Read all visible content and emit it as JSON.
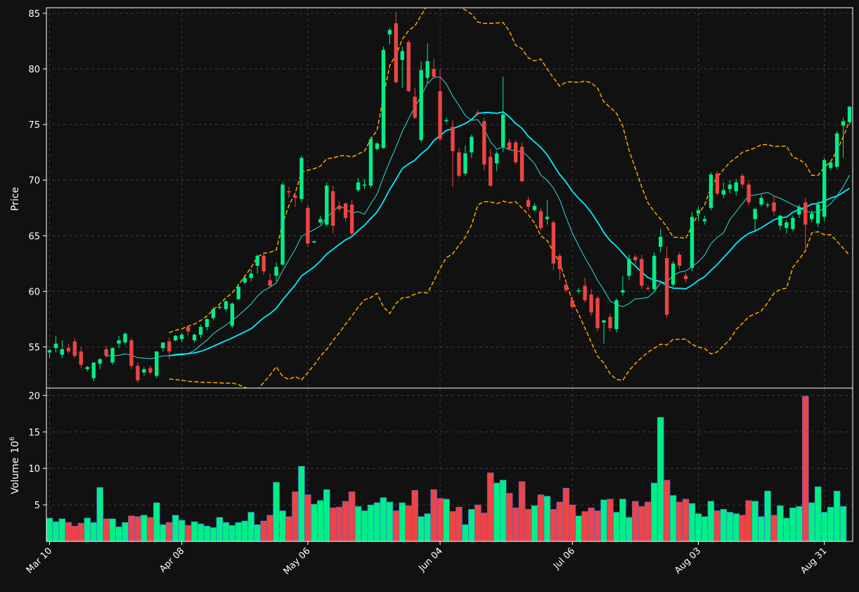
{
  "colors": {
    "background": "#111111",
    "up": "#00ee88",
    "down": "#ee4444",
    "volume_edge": "#4466dd",
    "fast_ma": "#33dddd",
    "slow_ma": "#00eeff",
    "bands": "#ffa500",
    "grid": "#3a3a3a",
    "frame": "#ffffff"
  },
  "chart_data": [
    {
      "type": "candlestick",
      "name": "price-panel",
      "ylabel": "Price",
      "ylim": [
        51.3,
        85.5
      ],
      "yticks": [
        55,
        60,
        65,
        70,
        75,
        80,
        85
      ],
      "grid": true,
      "start_date": "Mar 10",
      "x_tick_labels": [
        {
          "label": "Mar 10",
          "index": 0
        },
        {
          "label": "Apr 08",
          "index": 21
        },
        {
          "label": "May 06",
          "index": 41
        },
        {
          "label": "Jun 04",
          "index": 62
        },
        {
          "label": "Jul 06",
          "index": 83
        },
        {
          "label": "Aug 03",
          "index": 103
        },
        {
          "label": "Aug 31",
          "index": 123
        }
      ],
      "candles": [
        [
          54.5,
          54.8,
          54.0,
          54.7
        ],
        [
          54.9,
          56.0,
          54.5,
          55.3
        ],
        [
          54.3,
          55.6,
          54.0,
          54.8
        ],
        [
          54.9,
          55.3,
          54.4,
          54.6
        ],
        [
          55.5,
          55.8,
          54.0,
          54.2
        ],
        [
          54.6,
          55.0,
          53.1,
          53.4
        ],
        [
          53.0,
          53.3,
          52.8,
          53.2
        ],
        [
          52.2,
          53.6,
          51.9,
          53.6
        ],
        [
          53.5,
          54.0,
          53.0,
          53.9
        ],
        [
          54.8,
          55.1,
          54.0,
          54.2
        ],
        [
          53.6,
          55.0,
          53.4,
          54.9
        ],
        [
          55.3,
          56.0,
          54.9,
          55.6
        ],
        [
          55.4,
          56.3,
          55.2,
          56.2
        ],
        [
          55.6,
          55.8,
          53.0,
          53.3
        ],
        [
          53.3,
          53.6,
          51.8,
          52.0
        ],
        [
          52.7,
          53.2,
          52.4,
          53.0
        ],
        [
          53.1,
          53.3,
          52.5,
          52.7
        ],
        [
          52.4,
          54.6,
          52.2,
          54.6
        ],
        [
          54.9,
          55.4,
          54.6,
          55.4
        ],
        [
          55.5,
          55.8,
          53.9,
          54.6
        ],
        [
          55.6,
          56.1,
          55.5,
          56.0
        ],
        [
          55.7,
          56.3,
          55.4,
          56.1
        ],
        [
          56.8,
          56.9,
          56.0,
          56.4
        ],
        [
          55.6,
          56.2,
          55.4,
          56.1
        ],
        [
          56.1,
          57.0,
          55.8,
          56.8
        ],
        [
          56.8,
          57.6,
          56.5,
          57.5
        ],
        [
          57.6,
          58.6,
          57.4,
          58.4
        ],
        [
          58.5,
          58.8,
          58.4,
          58.6
        ],
        [
          58.4,
          59.2,
          58.2,
          59.1
        ],
        [
          56.9,
          59.0,
          56.7,
          58.9
        ],
        [
          59.3,
          60.7,
          59.2,
          60.4
        ],
        [
          60.8,
          61.3,
          60.6,
          61.2
        ],
        [
          61.2,
          62.0,
          60.9,
          61.6
        ],
        [
          62.3,
          63.3,
          61.6,
          63.2
        ],
        [
          63.2,
          63.4,
          61.5,
          61.8
        ],
        [
          61.0,
          61.6,
          60.3,
          60.5
        ],
        [
          61.4,
          62.6,
          60.9,
          62.2
        ],
        [
          62.4,
          69.8,
          62.3,
          69.6
        ],
        [
          69.0,
          69.4,
          68.4,
          68.9
        ],
        [
          68.6,
          68.9,
          67.6,
          68.4
        ],
        [
          68.3,
          72.2,
          68.0,
          72.0
        ],
        [
          67.5,
          67.8,
          64.0,
          64.3
        ],
        [
          64.4,
          64.6,
          64.3,
          64.5
        ],
        [
          66.2,
          66.8,
          66.0,
          66.5
        ],
        [
          66.0,
          69.8,
          65.8,
          69.5
        ],
        [
          69.0,
          69.5,
          65.2,
          65.9
        ],
        [
          67.7,
          68.1,
          67.2,
          67.4
        ],
        [
          67.9,
          68.0,
          66.3,
          66.6
        ],
        [
          67.8,
          68.2,
          64.9,
          65.2
        ],
        [
          69.1,
          70.2,
          68.9,
          69.8
        ],
        [
          69.5,
          70.1,
          69.2,
          69.6
        ],
        [
          69.5,
          73.9,
          69.3,
          73.7
        ],
        [
          72.8,
          73.4,
          72.7,
          73.3
        ],
        [
          72.9,
          82.0,
          72.8,
          81.7
        ],
        [
          83.1,
          83.7,
          82.2,
          83.5
        ],
        [
          84.1,
          85.1,
          78.7,
          78.8
        ],
        [
          80.8,
          82.0,
          78.3,
          81.6
        ],
        [
          82.4,
          82.6,
          77.9,
          78.0
        ],
        [
          77.5,
          78.3,
          75.5,
          75.6
        ],
        [
          73.6,
          80.7,
          73.4,
          79.9
        ],
        [
          79.2,
          82.3,
          78.7,
          80.7
        ],
        [
          80.0,
          80.9,
          79.1,
          79.3
        ],
        [
          78.0,
          80.0,
          73.5,
          73.7
        ],
        [
          75.3,
          75.6,
          75.1,
          75.4
        ],
        [
          74.8,
          75.4,
          69.4,
          72.6
        ],
        [
          72.5,
          72.9,
          70.2,
          70.4
        ],
        [
          70.6,
          73.1,
          70.4,
          72.4
        ],
        [
          72.5,
          74.1,
          72.0,
          73.9
        ],
        [
          76.1,
          76.3,
          75.8,
          76.0
        ],
        [
          75.3,
          75.6,
          70.9,
          71.4
        ],
        [
          72.1,
          72.8,
          69.4,
          69.5
        ],
        [
          71.5,
          72.6,
          70.8,
          72.4
        ],
        [
          73.0,
          79.3,
          72.5,
          75.9
        ],
        [
          73.4,
          73.7,
          72.7,
          72.8
        ],
        [
          73.4,
          73.6,
          71.4,
          71.6
        ],
        [
          73.0,
          73.4,
          69.8,
          69.9
        ],
        [
          68.2,
          68.5,
          67.3,
          67.6
        ],
        [
          67.3,
          67.9,
          67.2,
          67.7
        ],
        [
          67.2,
          67.5,
          65.5,
          65.7
        ],
        [
          66.5,
          68.2,
          66.0,
          66.7
        ],
        [
          66.2,
          66.4,
          61.9,
          62.5
        ],
        [
          63.2,
          63.4,
          61.0,
          62.0
        ],
        [
          60.6,
          61.0,
          59.9,
          60.1
        ],
        [
          59.2,
          59.5,
          58.4,
          58.6
        ],
        [
          60.0,
          60.3,
          59.8,
          60.1
        ],
        [
          60.5,
          61.2,
          59.0,
          59.2
        ],
        [
          59.7,
          60.2,
          57.8,
          58.1
        ],
        [
          59.4,
          59.6,
          56.4,
          56.7
        ],
        [
          57.2,
          57.4,
          55.3,
          57.4
        ],
        [
          57.7,
          58.0,
          56.4,
          56.7
        ],
        [
          56.6,
          59.4,
          56.3,
          59.2
        ],
        [
          59.9,
          61.4,
          59.6,
          60.1
        ],
        [
          61.4,
          63.3,
          61.0,
          62.9
        ],
        [
          63.1,
          63.3,
          62.4,
          62.8
        ],
        [
          62.9,
          63.3,
          60.2,
          60.5
        ],
        [
          60.3,
          60.5,
          60.1,
          60.2
        ],
        [
          60.2,
          63.5,
          60.0,
          63.2
        ],
        [
          64.0,
          65.6,
          63.5,
          64.9
        ],
        [
          63.0,
          64.0,
          57.6,
          57.9
        ],
        [
          60.6,
          62.7,
          60.4,
          62.5
        ],
        [
          63.3,
          63.5,
          62.0,
          62.3
        ],
        [
          61.4,
          61.7,
          60.8,
          61.1
        ],
        [
          62.1,
          67.1,
          61.8,
          66.7
        ],
        [
          67.0,
          67.6,
          66.3,
          67.3
        ],
        [
          66.3,
          66.8,
          66.0,
          66.5
        ],
        [
          67.5,
          70.7,
          67.3,
          70.5
        ],
        [
          70.6,
          70.8,
          68.6,
          68.8
        ],
        [
          68.7,
          69.8,
          68.4,
          69.1
        ],
        [
          69.2,
          70.0,
          68.8,
          69.6
        ],
        [
          69.0,
          70.1,
          68.6,
          69.8
        ],
        [
          70.4,
          70.6,
          69.3,
          69.6
        ],
        [
          69.6,
          70.0,
          67.7,
          68.0
        ],
        [
          66.5,
          67.5,
          65.3,
          67.4
        ],
        [
          67.8,
          68.7,
          67.6,
          68.4
        ],
        [
          67.8,
          68.0,
          67.5,
          67.8
        ],
        [
          68.0,
          68.6,
          66.8,
          67.2
        ],
        [
          65.9,
          66.9,
          65.5,
          66.8
        ],
        [
          65.7,
          66.4,
          65.2,
          66.2
        ],
        [
          65.6,
          66.8,
          65.4,
          66.6
        ],
        [
          66.9,
          67.8,
          66.6,
          67.6
        ],
        [
          68.0,
          68.4,
          63.8,
          66.0
        ],
        [
          66.5,
          67.3,
          66.2,
          67.0
        ],
        [
          66.1,
          68.1,
          65.8,
          67.8
        ],
        [
          66.7,
          72.0,
          66.3,
          71.8
        ],
        [
          71.1,
          71.7,
          70.9,
          71.6
        ],
        [
          71.2,
          74.4,
          71.0,
          74.2
        ],
        [
          74.9,
          75.6,
          72.0,
          75.3
        ],
        [
          75.2,
          76.7,
          75.0,
          76.6
        ]
      ]
    },
    {
      "type": "bar",
      "name": "volume-panel",
      "ylabel": "Volume",
      "ylabel_exponent": "10",
      "ylabel_exponent_power": "6",
      "ylim": [
        0,
        21
      ],
      "yticks": [
        5,
        10,
        15,
        20
      ],
      "grid": true,
      "values": [
        3.2,
        2.7,
        3.1,
        2.6,
        2.1,
        2.5,
        3.2,
        2.6,
        7.4,
        3.1,
        3.1,
        2.0,
        2.6,
        3.5,
        3.4,
        3.6,
        3.3,
        5.3,
        2.3,
        2.6,
        3.6,
        2.9,
        2.2,
        2.7,
        2.4,
        2.1,
        1.9,
        3.3,
        2.6,
        2.2,
        2.6,
        2.8,
        4.0,
        2.3,
        2.8,
        3.6,
        8.1,
        4.2,
        3.4,
        6.8,
        10.3,
        6.4,
        5.1,
        5.6,
        7.1,
        4.6,
        4.7,
        5.5,
        6.8,
        4.8,
        4.2,
        5.0,
        5.3,
        6.0,
        5.4,
        4.2,
        5.3,
        4.9,
        7.0,
        3.4,
        3.8,
        7.1,
        5.9,
        5.8,
        4.1,
        4.7,
        2.3,
        4.4,
        5.0,
        3.9,
        9.4,
        8.0,
        8.4,
        6.6,
        4.6,
        8.2,
        4.4,
        4.9,
        6.4,
        6.2,
        4.4,
        5.4,
        7.3,
        5.0,
        3.5,
        4.1,
        4.6,
        4.2,
        5.7,
        5.8,
        4.0,
        5.8,
        3.3,
        5.5,
        4.8,
        5.4,
        8.0,
        17.0,
        8.4,
        6.3,
        5.4,
        5.8,
        5.2,
        3.8,
        3.4,
        5.5,
        4.2,
        4.4,
        4.0,
        3.8,
        3.6,
        5.6,
        5.5,
        3.4,
        6.9,
        3.6,
        4.9,
        3.2,
        4.6,
        4.8,
        19.9,
        5.3,
        7.5,
        4.0,
        4.7,
        6.9,
        4.8
      ]
    }
  ]
}
